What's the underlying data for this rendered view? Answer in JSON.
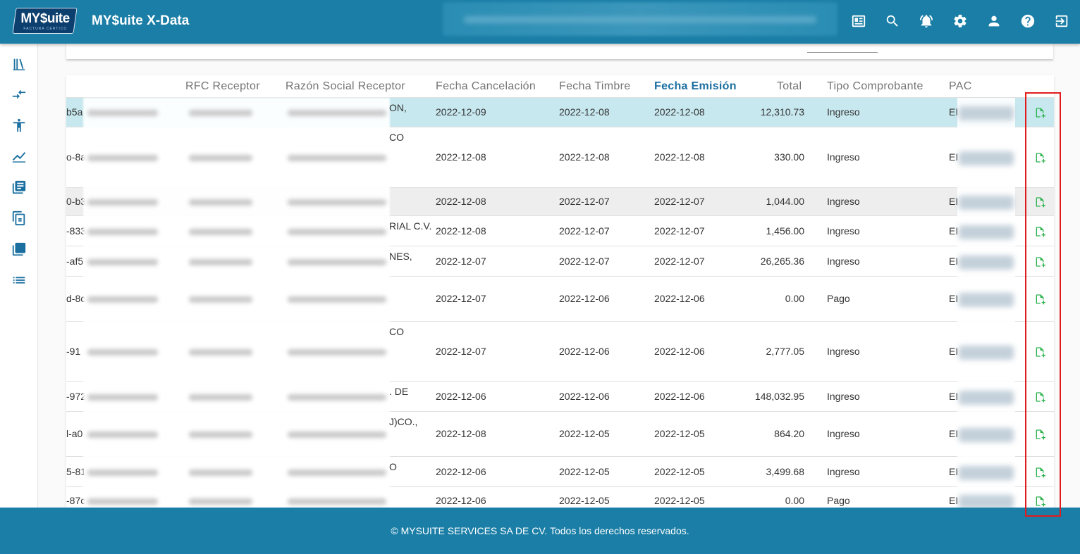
{
  "app": {
    "logo_text": "MY$uite",
    "logo_subtext": "FACTURA CERTICO",
    "title": "MY$uite X-Data"
  },
  "topbar_icons": [
    "news-icon",
    "search-icon",
    "alarm-icon",
    "settings-icon",
    "user-icon",
    "help-icon",
    "logout-icon"
  ],
  "sidebar_icons": [
    "library-icon",
    "compare-arrows-icon",
    "accessibility-icon",
    "chart-icon",
    "book-icon",
    "copy-icon",
    "layers-icon",
    "list-icon"
  ],
  "table": {
    "columns": {
      "rfc": "RFC Receptor",
      "razon": "Razón Social Receptor",
      "fecha_cancelacion": "Fecha Cancelación",
      "fecha_timbre": "Fecha Timbre",
      "fecha_emision": "Fecha Emisión",
      "total": "Total",
      "tipo": "Tipo Comprobante",
      "pac": "PAC"
    },
    "rows": [
      {
        "uuid_frag": "b5a",
        "razon_frag": "ON,",
        "fecha_cancelacion": "2022-12-09",
        "fecha_timbre": "2022-12-08",
        "fecha_emision": "2022-12-08",
        "total": "12,310.73",
        "tipo": "Ingreso",
        "pac_frag": "EI"
      },
      {
        "uuid_frag": "o-8a",
        "razon_frag": "CO",
        "fecha_cancelacion": "2022-12-08",
        "fecha_timbre": "2022-12-08",
        "fecha_emision": "2022-12-08",
        "total": "330.00",
        "tipo": "Ingreso",
        "pac_frag": "EI"
      },
      {
        "uuid_frag": "0-b3",
        "razon_frag": "",
        "fecha_cancelacion": "2022-12-08",
        "fecha_timbre": "2022-12-07",
        "fecha_emision": "2022-12-07",
        "total": "1,044.00",
        "tipo": "Ingreso",
        "pac_frag": "EI"
      },
      {
        "uuid_frag": "-833",
        "razon_frag": "RIAL C.V.",
        "fecha_cancelacion": "2022-12-08",
        "fecha_timbre": "2022-12-07",
        "fecha_emision": "2022-12-07",
        "total": "1,456.00",
        "tipo": "Ingreso",
        "pac_frag": "EI"
      },
      {
        "uuid_frag": "-af5",
        "razon_frag": "NES,",
        "fecha_cancelacion": "2022-12-07",
        "fecha_timbre": "2022-12-07",
        "fecha_emision": "2022-12-07",
        "total": "26,265.36",
        "tipo": "Ingreso",
        "pac_frag": "EI"
      },
      {
        "uuid_frag": "d-8c",
        "razon_frag": "",
        "fecha_cancelacion": "2022-12-07",
        "fecha_timbre": "2022-12-06",
        "fecha_emision": "2022-12-06",
        "total": "0.00",
        "tipo": "Pago",
        "pac_frag": "EI"
      },
      {
        "uuid_frag": "-91",
        "razon_frag": "CO",
        "fecha_cancelacion": "2022-12-07",
        "fecha_timbre": "2022-12-06",
        "fecha_emision": "2022-12-06",
        "total": "2,777.05",
        "tipo": "Ingreso",
        "pac_frag": "EI"
      },
      {
        "uuid_frag": "-972",
        "razon_frag": ". DE",
        "fecha_cancelacion": "2022-12-06",
        "fecha_timbre": "2022-12-06",
        "fecha_emision": "2022-12-06",
        "total": "148,032.95",
        "tipo": "Ingreso",
        "pac_frag": "EI"
      },
      {
        "uuid_frag": "l-a0",
        "razon_frag": "J)CO.,",
        "fecha_cancelacion": "2022-12-08",
        "fecha_timbre": "2022-12-05",
        "fecha_emision": "2022-12-05",
        "total": "864.20",
        "tipo": "Ingreso",
        "pac_frag": "EI"
      },
      {
        "uuid_frag": "5-81",
        "razon_frag": "O",
        "fecha_cancelacion": "2022-12-06",
        "fecha_timbre": "2022-12-05",
        "fecha_emision": "2022-12-05",
        "total": "3,499.68",
        "tipo": "Ingreso",
        "pac_frag": "EI"
      },
      {
        "uuid_frag": "-87c",
        "razon_frag": "",
        "fecha_cancelacion": "2022-12-06",
        "fecha_timbre": "2022-12-05",
        "fecha_emision": "2022-12-05",
        "total": "0.00",
        "tipo": "Pago",
        "pac_frag": "EI"
      }
    ],
    "action_icon": "download-xml-icon"
  },
  "footer": {
    "text": "© MYSUITE SERVICES SA DE CV. Todos los derechos reservados."
  },
  "colors": {
    "brand": "#1a7ea6",
    "highlight_row": "#c7e8ef",
    "action_green": "#2bb24c",
    "annotation_red": "#e11b1b"
  }
}
